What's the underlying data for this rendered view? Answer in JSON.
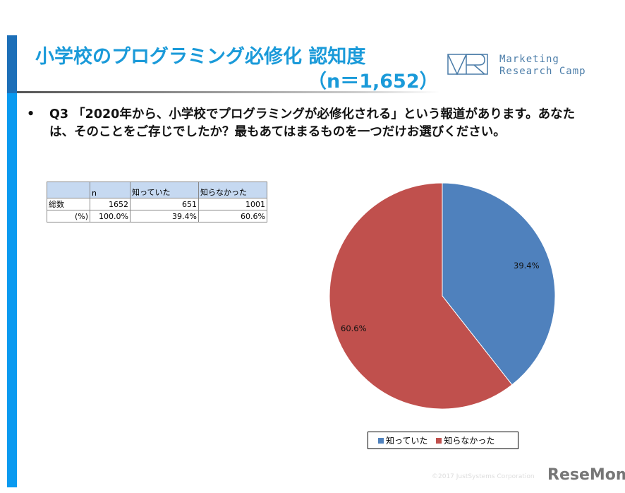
{
  "header": {
    "title": "小学校のプログラミング必修化 認知度",
    "sample": "（n＝1,652）",
    "logo_line1": "Marketing",
    "logo_line2": "Research Camp"
  },
  "question": {
    "bullet": "•",
    "text": "Q3 「2020年から、小学校でプログラミングが必修化される」という報道があります。あなたは、そのことをご存じでしたか？最もあてはまるものを一つだけお選びください。"
  },
  "table": {
    "headers": [
      "",
      "n",
      "知っていた",
      "知らなかった"
    ],
    "rows": [
      [
        "総数",
        "1652",
        "651",
        "1001"
      ],
      [
        "(%)",
        "100.0%",
        "39.4%",
        "60.6%"
      ]
    ]
  },
  "chart_data": {
    "type": "pie",
    "categories": [
      "知っていた",
      "知らなかった"
    ],
    "values": [
      39.4,
      60.6
    ],
    "labels": [
      "39.4%",
      "60.6%"
    ],
    "colors": [
      "#4f81bd",
      "#c0504d"
    ],
    "legend": "bottom"
  },
  "footer": {
    "copyright": "©2017 JustSystems Corporation",
    "brand": "ReseMom"
  }
}
